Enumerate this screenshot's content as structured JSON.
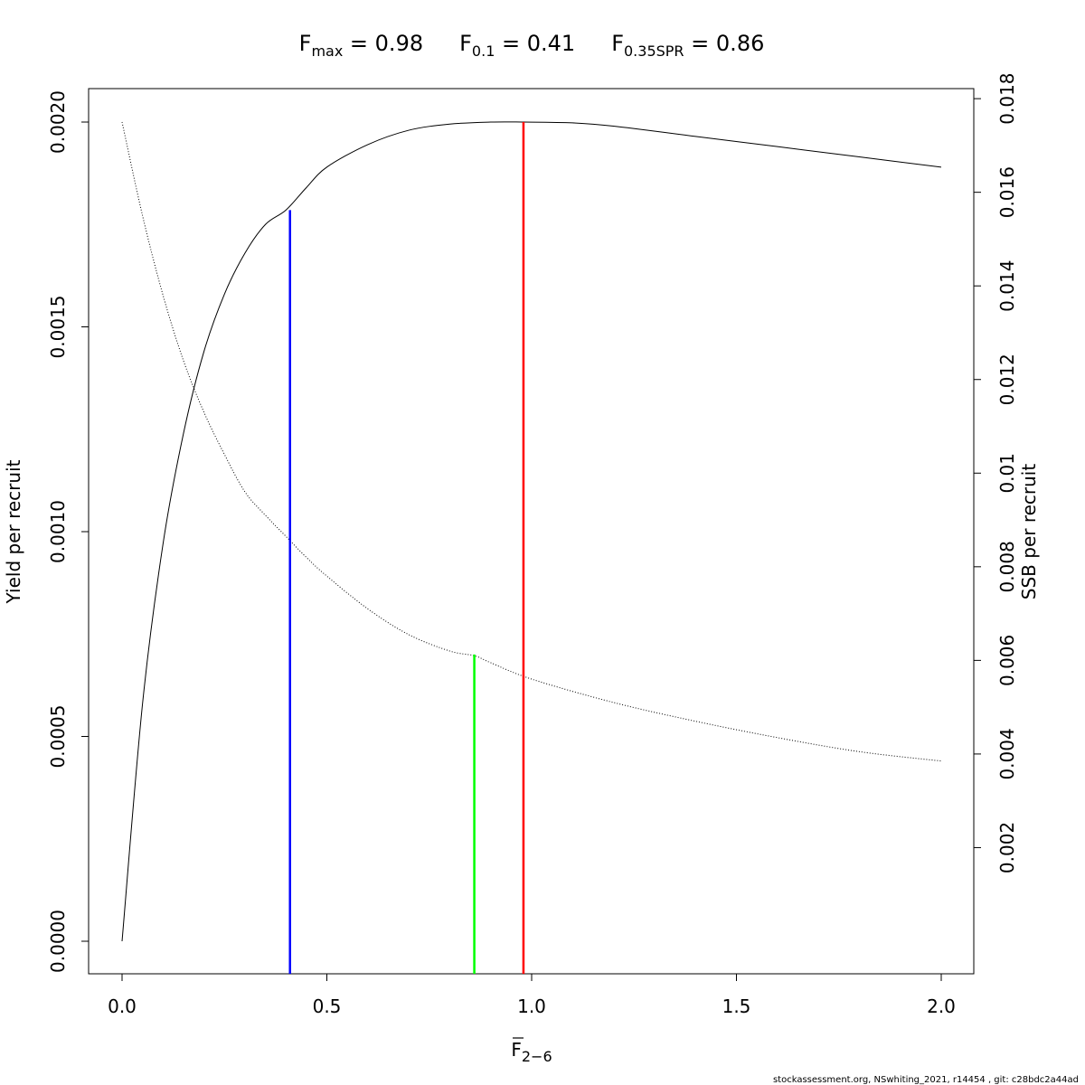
{
  "chart_data": {
    "type": "line",
    "title_parts": [
      {
        "symbol": "F",
        "subscript": "max",
        "relation": " = 0.98"
      },
      {
        "symbol": "F",
        "subscript": "0.1",
        "relation": " = 0.41"
      },
      {
        "symbol": "F",
        "subscript": "0.35SPR",
        "relation": " = 0.86"
      }
    ],
    "xlabel_symbol": "F",
    "xlabel_subscript": "2−6",
    "ylabel": "Yield per recruit",
    "y2label": "SSB per recruit",
    "xlim": [
      0,
      2
    ],
    "ylim": [
      0,
      0.002
    ],
    "y2lim": [
      0,
      0.0175
    ],
    "x_ticks": [
      "0.0",
      "0.5",
      "1.0",
      "1.5",
      "2.0"
    ],
    "y_ticks": [
      "0.0000",
      "0.0005",
      "0.0010",
      "0.0015",
      "0.0020"
    ],
    "y2_ticks": [
      "0.002",
      "0.004",
      "0.006",
      "0.008",
      "0.01",
      "0.012",
      "0.014",
      "0.016",
      "0.018"
    ],
    "series": [
      {
        "axis": "left",
        "style": "solid",
        "color": "#000000",
        "x": [
          0,
          0.05,
          0.1,
          0.15,
          0.2,
          0.25,
          0.3,
          0.35,
          0.4,
          0.45,
          0.5,
          0.6,
          0.7,
          0.8,
          0.9,
          0.98,
          1.1,
          1.2,
          1.4,
          1.6,
          1.8,
          2.0
        ],
        "y": [
          0,
          0.00058,
          0.00097,
          0.00124,
          0.00144,
          0.00158,
          0.00168,
          0.00175,
          0.001785,
          0.00184,
          0.00189,
          0.001945,
          0.00198,
          0.001995,
          0.002,
          0.002,
          0.001998,
          0.00199,
          0.001965,
          0.00194,
          0.001915,
          0.00189
        ]
      },
      {
        "axis": "right",
        "style": "dotted",
        "color": "#000000",
        "x": [
          0,
          0.05,
          0.1,
          0.15,
          0.2,
          0.25,
          0.3,
          0.35,
          0.4,
          0.45,
          0.5,
          0.6,
          0.7,
          0.8,
          0.86,
          0.9,
          1.0,
          1.2,
          1.4,
          1.6,
          1.8,
          2.0
        ],
        "y": [
          0.0175,
          0.0155,
          0.0138,
          0.0124,
          0.0113,
          0.0104,
          0.0096,
          0.0091,
          0.00865,
          0.0082,
          0.0078,
          0.0071,
          0.00655,
          0.0062,
          0.0061,
          0.00595,
          0.0056,
          0.0051,
          0.0047,
          0.00435,
          0.00405,
          0.00385
        ]
      }
    ],
    "reference_lines": [
      {
        "x": 0.41,
        "y_top": 0.001785,
        "color": "#0000ff",
        "name": "F0.1"
      },
      {
        "x": 0.86,
        "y_top": 0.0007,
        "color": "#00ff00",
        "name": "F0.35SPR"
      },
      {
        "x": 0.98,
        "y_top": 0.002,
        "color": "#ff0000",
        "name": "Fmax"
      }
    ],
    "footer": "stockassessment.org, NSwhiting_2021, r14454 , git: c28bdc2a44ad"
  }
}
